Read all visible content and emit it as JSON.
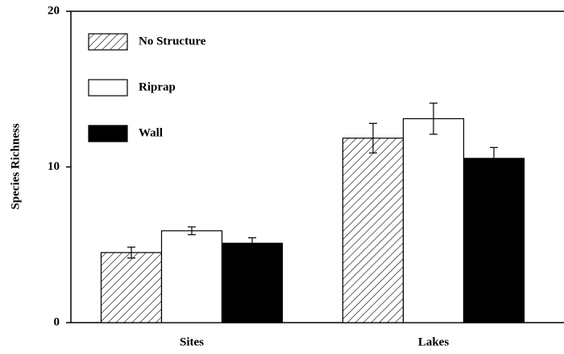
{
  "chart_data": {
    "type": "bar",
    "y_label": "Species Richness",
    "categories": [
      "Sites",
      "Lakes"
    ],
    "series": [
      {
        "name": "No Structure",
        "color": "#000000",
        "pattern": "hatch",
        "values": [
          4.5,
          11.85
        ],
        "errors": [
          0.35,
          0.95
        ]
      },
      {
        "name": "Riprap",
        "color": "#ffffff",
        "values": [
          5.9,
          13.1
        ],
        "errors": [
          0.25,
          1.0
        ]
      },
      {
        "name": "Wall",
        "color": "#000000",
        "values": [
          5.1,
          10.55
        ],
        "errors": [
          0.35,
          0.7
        ]
      }
    ],
    "ylim": [
      0,
      20
    ],
    "yticks": [
      0,
      10,
      20
    ],
    "grid": false,
    "legend": "upper left"
  }
}
